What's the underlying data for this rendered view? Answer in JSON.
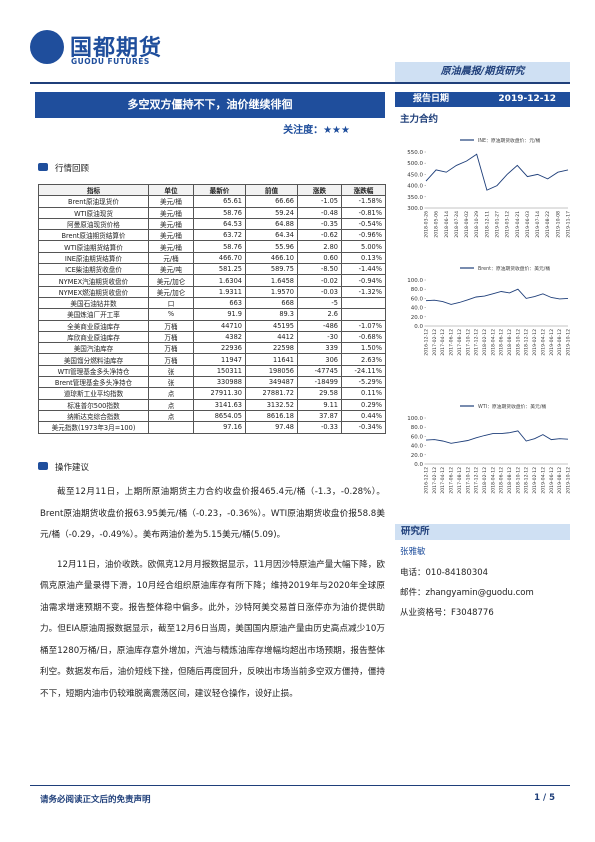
{
  "header": {
    "logo": "国都期货",
    "logo_en": "GUODU FUTURES",
    "band": "原油晨报/期货研究"
  },
  "title": "多空双方僵持不下，油价继续徘徊",
  "attention": {
    "label": "关注度：",
    "stars": "★★★"
  },
  "report_date": {
    "label": "报告日期",
    "value": "2019-12-12"
  },
  "main_contract": "主力合约",
  "review": {
    "heading": "行情回顾",
    "table": {
      "columns": [
        "指标",
        "单位",
        "最新价",
        "前值",
        "涨跌",
        "涨跌幅"
      ],
      "rows": [
        [
          "Brent原油现货价",
          "美元/桶",
          "65.61",
          "66.66",
          "-1.05",
          "-1.58%"
        ],
        [
          "WTI原油现货",
          "美元/桶",
          "58.76",
          "59.24",
          "-0.48",
          "-0.81%"
        ],
        [
          "阿曼原油现货价格",
          "美元/桶",
          "64.53",
          "64.88",
          "-0.35",
          "-0.54%"
        ],
        [
          "Brent原油期货结算价",
          "美元/桶",
          "63.72",
          "64.34",
          "-0.62",
          "-0.96%"
        ],
        [
          "WTI原油期货结算价",
          "美元/桶",
          "58.76",
          "55.96",
          "2.80",
          "5.00%"
        ],
        [
          "INE原油期货结算价",
          "元/桶",
          "466.70",
          "466.10",
          "0.60",
          "0.13%"
        ],
        [
          "ICE柴油期货收盘价",
          "美元/吨",
          "581.25",
          "589.75",
          "-8.50",
          "-1.44%"
        ],
        [
          "NYMEX汽油期货收盘价",
          "美元/加仑",
          "1.6304",
          "1.6458",
          "-0.02",
          "-0.94%"
        ],
        [
          "NYMEX燃油期货收盘价",
          "美元/加仑",
          "1.9311",
          "1.9570",
          "-0.03",
          "-1.32%"
        ],
        [
          "美国石油钻井数",
          "口",
          "663",
          "668",
          "-5",
          null
        ],
        [
          "美国炼油厂开工率",
          "%",
          "91.9",
          "89.3",
          "2.6",
          null
        ],
        [
          "全美商业原油库存",
          "万桶",
          "44710",
          "45195",
          "-486",
          "-1.07%"
        ],
        [
          "库欣商业原油库存",
          "万桶",
          "4382",
          "4412",
          "-30",
          "-0.68%"
        ],
        [
          "美国汽油库存",
          "万桶",
          "22936",
          "22598",
          "339",
          "1.50%"
        ],
        [
          "美国馏分燃料油库存",
          "万桶",
          "11947",
          "11641",
          "306",
          "2.63%"
        ],
        [
          "WTI管理基金多头净持仓",
          "张",
          "150311",
          "198056",
          "-47745",
          "-24.11%"
        ],
        [
          "Brent管理基金多头净持仓",
          "张",
          "330988",
          "349487",
          "-18499",
          "-5.29%"
        ],
        [
          "道琼斯工业平均指数",
          "点",
          "27911.30",
          "27881.72",
          "29.58",
          "0.11%"
        ],
        [
          "标准普尔500指数",
          "点",
          "3141.63",
          "3132.52",
          "9.11",
          "0.29%"
        ],
        [
          "纳斯达克综合指数",
          "点",
          "8654.05",
          "8616.18",
          "37.87",
          "0.44%"
        ],
        [
          "美元指数(1973年3月=100)",
          null,
          "97.16",
          "97.48",
          "-0.33",
          "-0.34%"
        ]
      ]
    }
  },
  "advice": {
    "heading": "操作建议",
    "paragraphs": [
      "截至12月11日，上期所原油期货主力合约收盘价报465.4元/桶（-1.3，-0.28%）。Brent原油期货收盘价报63.95美元/桶（-0.23，-0.36%）。WTI原油期货收盘价报58.8美元/桶（-0.29，-0.49%）。美布两油价差为5.15美元/桶(5.09)。",
      "12月11日，油价收跌。欧佩克12月月报数据显示，11月因沙特原油产量大幅下降，欧佩克原油产量录得下滑，10月经合组织原油库存有所下降；维持2019年与2020年全球原油需求增速预期不变。报告整体稳中偏多。此外，沙特阿美交易首日涨停亦为油价提供助力。但EIA原油周报数据显示，截至12月6日当周，美国国内原油产量由历史高点减少10万桶至1280万桶/日，原油库存意外增加，汽油与精炼油库存增幅均超出市场预期，报告整体利空。数据发布后，油价短线下挫，但随后再度回升，反映出市场当前多空双方僵持，僵持不下，短期内油市仍较难脱离震荡区间，建议轻仓操作，设好止损。"
    ]
  },
  "charts": [
    {
      "type": "line",
      "name": "INE：原油期货收盘价：元/桶",
      "color": "#1f3f7a",
      "categories": [
        "2018-03-26",
        "2018-05-06",
        "2018-06-14",
        "2018-07-24",
        "2018-09-02",
        "2018-10-29",
        "2018-12-11",
        "2019-01-27",
        "2019-03-12",
        "2019-04-21",
        "2019-06-03",
        "2019-07-14",
        "2019-08-22",
        "2019-10-08",
        "2019-11-17"
      ],
      "values": [
        420,
        470,
        460,
        490,
        510,
        540,
        380,
        400,
        450,
        490,
        440,
        450,
        430,
        460,
        470
      ],
      "ylim": [
        300,
        550
      ],
      "yticks": [
        {
          "value": 550,
          "label": "550.0"
        },
        {
          "value": 500,
          "label": "500.0"
        },
        {
          "value": 450,
          "label": "450.0"
        },
        {
          "value": 400,
          "label": "400.0"
        },
        {
          "value": 350,
          "label": "350.0"
        },
        {
          "value": 300,
          "label": "300.0"
        }
      ]
    },
    {
      "type": "line",
      "name": "Brent：原油期货收盘价：美元/桶",
      "color": "#1f3f7a",
      "categories": [
        "2016-12-12",
        "2017-02-12",
        "2017-04-12",
        "2017-06-12",
        "2017-08-12",
        "2017-10-12",
        "2017-12-12",
        "2018-02-12",
        "2018-04-12",
        "2018-06-12",
        "2018-08-12",
        "2018-10-12",
        "2018-12-12",
        "2019-02-12",
        "2019-04-12",
        "2019-06-12",
        "2019-08-12",
        "2019-10-12"
      ],
      "values": [
        55,
        56,
        53,
        47,
        51,
        57,
        63,
        65,
        70,
        75,
        72,
        80,
        60,
        64,
        70,
        62,
        59,
        60
      ],
      "ylim": [
        0,
        100
      ],
      "yticks": [
        {
          "value": 100,
          "label": "100.0"
        },
        {
          "value": 80,
          "label": "80.0"
        },
        {
          "value": 60,
          "label": "60.0"
        },
        {
          "value": 40,
          "label": "40.0"
        },
        {
          "value": 20,
          "label": "20.0"
        },
        {
          "value": 0,
          "label": "0.0"
        }
      ]
    },
    {
      "type": "line",
      "name": "WTI：原油期货收盘价：美元/桶",
      "color": "#1f3f7a",
      "categories": [
        "2016-12-12",
        "2017-02-12",
        "2017-04-12",
        "2017-06-12",
        "2017-08-12",
        "2017-10-12",
        "2017-12-12",
        "2018-02-12",
        "2018-04-12",
        "2018-06-12",
        "2018-08-12",
        "2018-10-12",
        "2018-12-12",
        "2019-02-12",
        "2019-04-12",
        "2019-06-12",
        "2019-08-12",
        "2019-10-12"
      ],
      "values": [
        52,
        53,
        50,
        45,
        48,
        51,
        57,
        62,
        66,
        66,
        68,
        72,
        50,
        55,
        64,
        53,
        55,
        54
      ],
      "ylim": [
        0,
        100
      ],
      "yticks": [
        {
          "value": 100,
          "label": "100.0"
        },
        {
          "value": 80,
          "label": "80.0"
        },
        {
          "value": 60,
          "label": "60.0"
        },
        {
          "value": 40,
          "label": "40.0"
        },
        {
          "value": 20,
          "label": "20.0"
        },
        {
          "value": 0,
          "label": "0.0"
        }
      ]
    }
  ],
  "institute": {
    "heading": "研究所",
    "name": "张雅敏",
    "phone": "电话：010-84180304",
    "email": "邮件：zhangyamin@guodu.com",
    "license": "从业资格号：F3048776"
  },
  "footer": {
    "disclaimer": "请务必阅读正文后的免责声明",
    "page": "1 / 5"
  }
}
